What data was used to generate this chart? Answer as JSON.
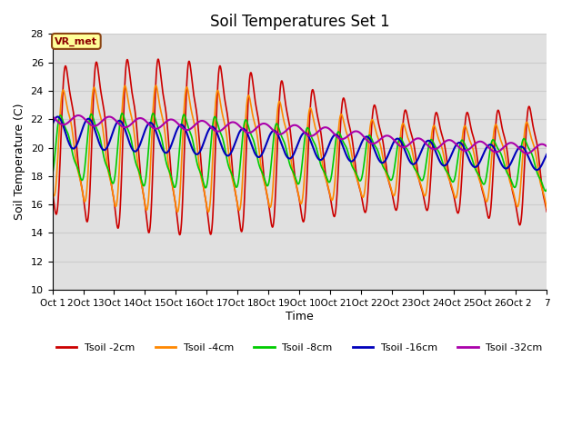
{
  "title": "Soil Temperatures Set 1",
  "xlabel": "Time",
  "ylabel": "Soil Temperature (C)",
  "ylim": [
    10,
    28
  ],
  "xlim": [
    0,
    384
  ],
  "xtick_labels": [
    "Oct 1",
    "2Oct 1",
    "3Oct 1",
    "4Oct 1",
    "5Oct 1",
    "6Oct 1",
    "7Oct 1",
    "8Oct 1",
    "9Oct 1",
    "0Oct 2",
    "1Oct 2",
    "2Oct 2",
    "3Oct 2",
    "4Oct 2",
    "5Oct 2",
    "6Oct 2",
    "7"
  ],
  "annotation": "VR_met",
  "series": {
    "Tsoil -2cm": {
      "color": "#CC0000"
    },
    "Tsoil -4cm": {
      "color": "#FF8800"
    },
    "Tsoil -8cm": {
      "color": "#00CC00"
    },
    "Tsoil -16cm": {
      "color": "#0000BB"
    },
    "Tsoil -32cm": {
      "color": "#AA00AA"
    }
  },
  "grid_color": "#CCCCCC",
  "bg_color": "#E0E0E0",
  "title_fontsize": 12,
  "legend_labels": [
    "Tsoil -2cm",
    "Tsoil -4cm",
    "Tsoil -8cm",
    "Tsoil -16cm",
    "Tsoil -32cm"
  ]
}
